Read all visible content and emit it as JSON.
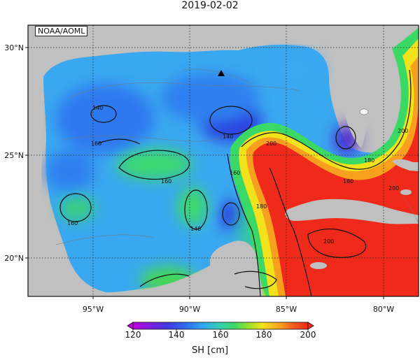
{
  "title": "2019-02-02",
  "credit": "NOAA/AOML",
  "axes": {
    "lat_labels": [
      "30°N",
      "25°N",
      "20°N"
    ],
    "lon_labels": [
      "95°W",
      "90°W",
      "85°W",
      "80°W"
    ]
  },
  "colorbar": {
    "label": "SH [cm]",
    "ticks": [
      "120",
      "140",
      "160",
      "180",
      "200"
    ],
    "colors": [
      "#c000e0",
      "#5a2bd6",
      "#2b4ce0",
      "#2f8cf0",
      "#35c8d0",
      "#3ad864",
      "#9be02a",
      "#f2e21c",
      "#f7a020",
      "#f25a1c",
      "#f02a1a"
    ]
  },
  "contour_labels": [
    "140",
    "160",
    "140",
    "160",
    "200",
    "160",
    "180",
    "180",
    "200",
    "200",
    "180",
    "160",
    "140",
    "200"
  ],
  "colors": {
    "land": "#c0c0c0",
    "low": "#3a5ef0",
    "mid": "#3aa8f0",
    "high": "#f02a1a"
  }
}
